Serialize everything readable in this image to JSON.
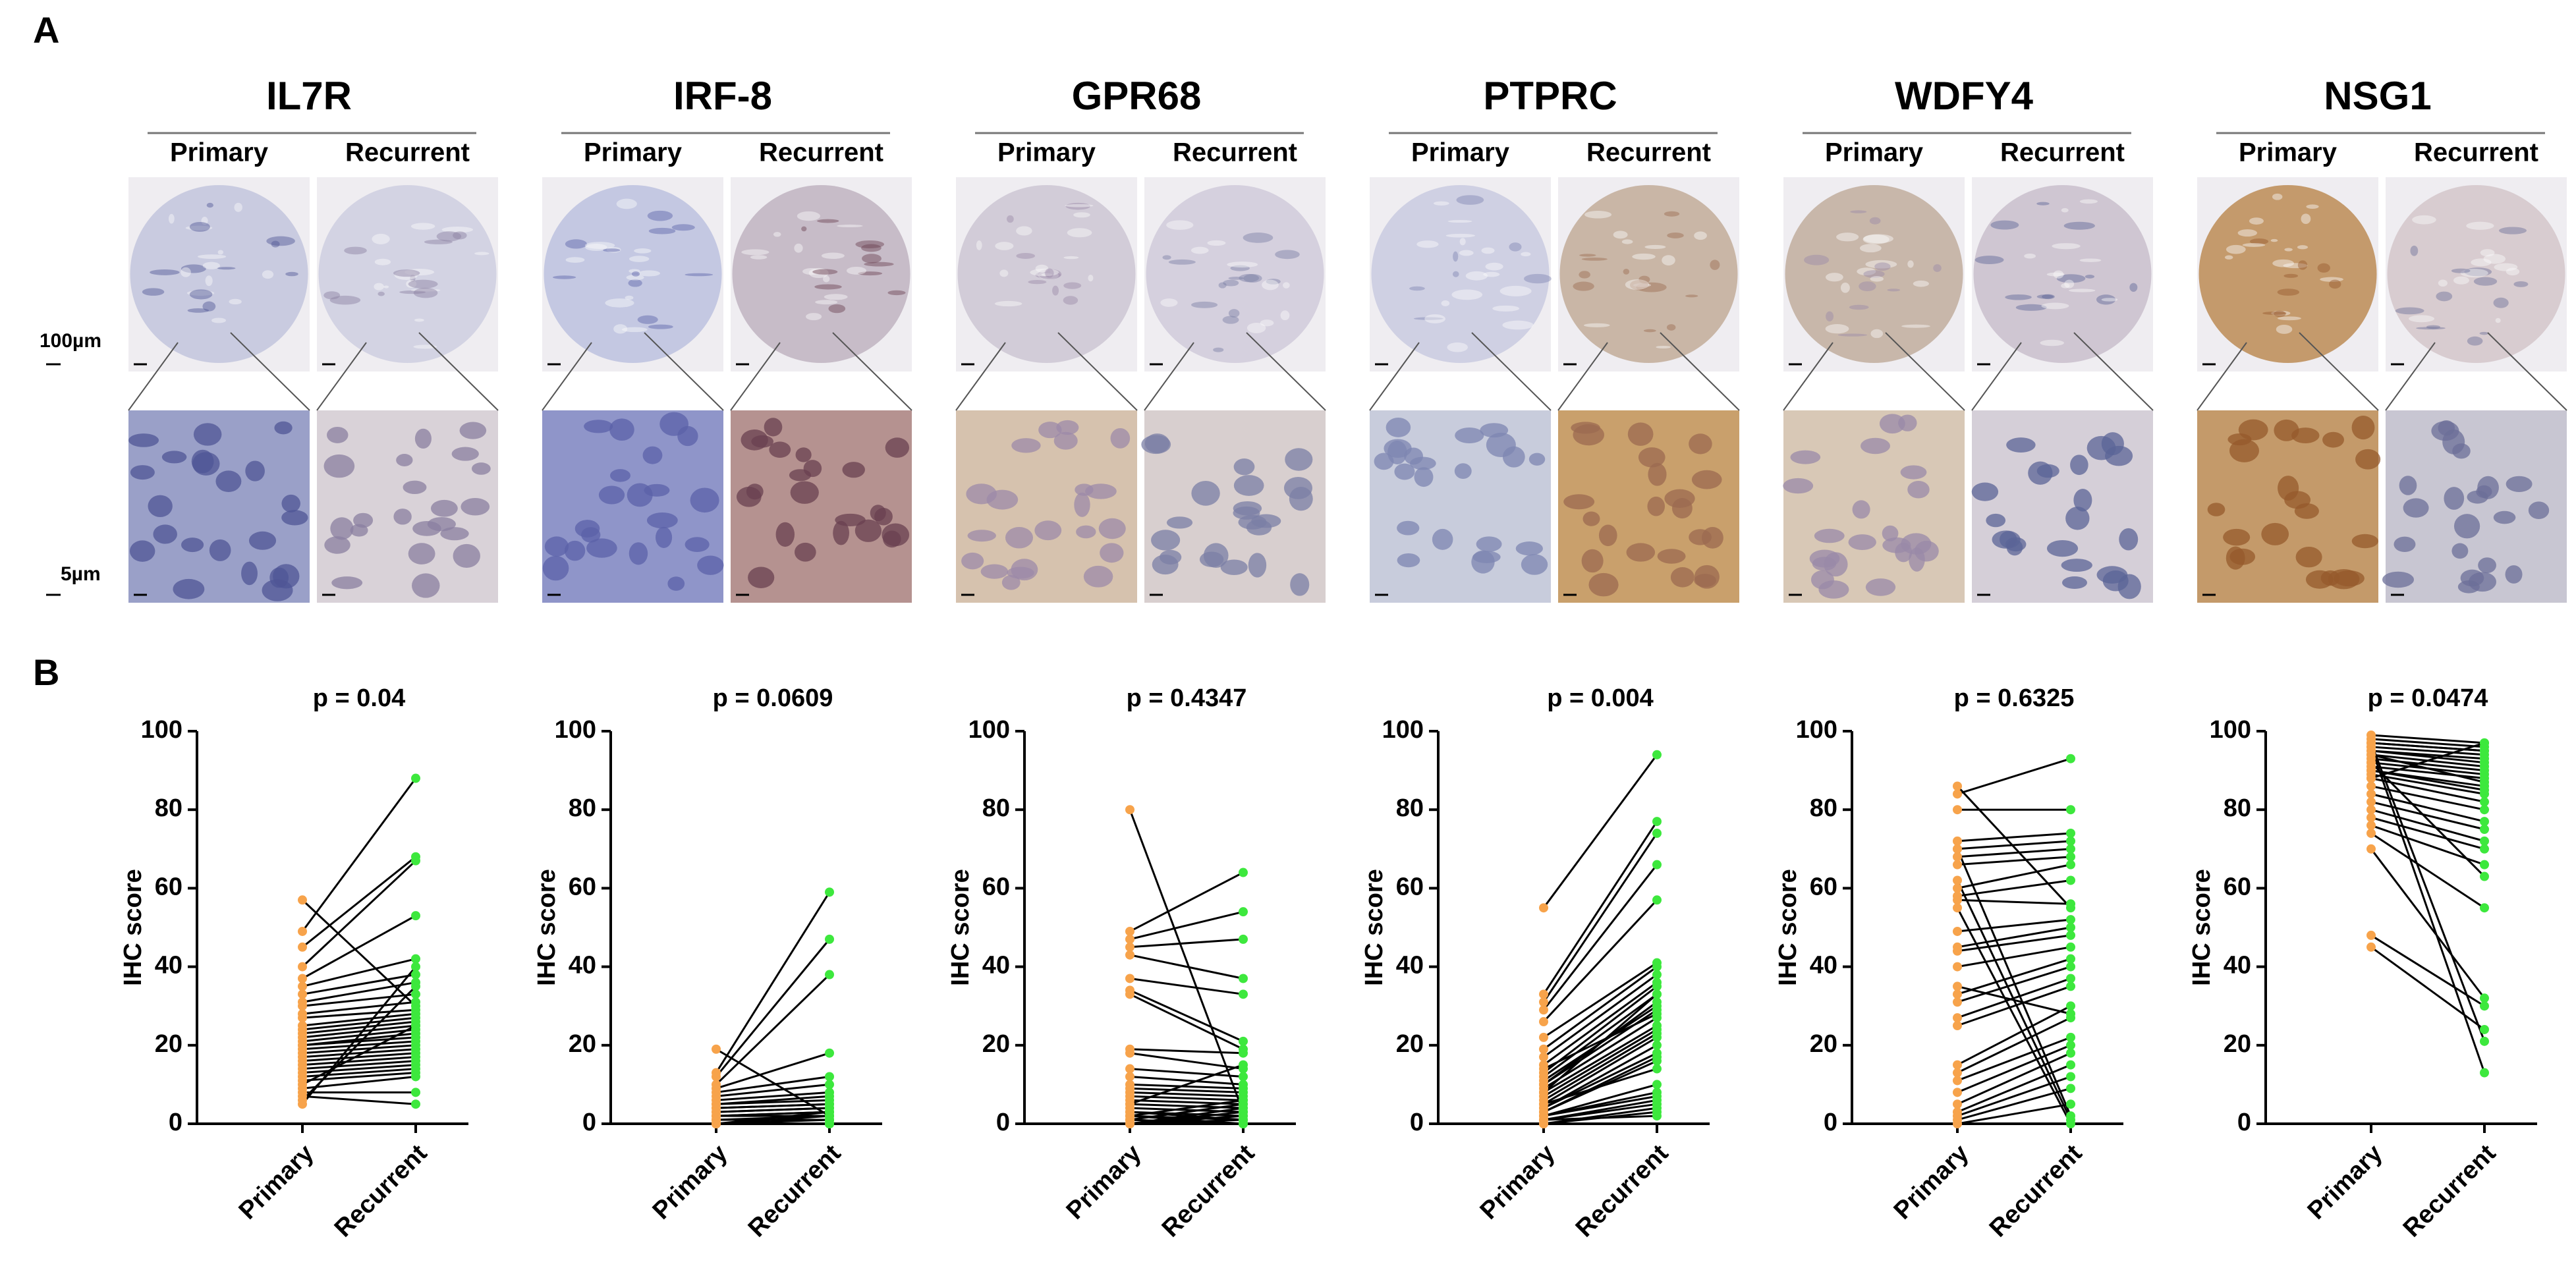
{
  "panel_a": {
    "label": "A",
    "scale_bars": [
      "100µm",
      "5µm"
    ],
    "genes": [
      {
        "name": "IL7R",
        "columns": [
          "Primary",
          "Recurrent"
        ]
      },
      {
        "name": "IRF-8",
        "columns": [
          "Primary",
          "Recurrent"
        ]
      },
      {
        "name": "GPR68",
        "columns": [
          "Primary",
          "Recurrent"
        ]
      },
      {
        "name": "PTPRC",
        "columns": [
          "Primary",
          "Recurrent"
        ]
      },
      {
        "name": "WDFY4",
        "columns": [
          "Primary",
          "Recurrent"
        ]
      },
      {
        "name": "NSG1",
        "columns": [
          "Primary",
          "Recurrent"
        ]
      }
    ]
  },
  "panel_b_label": "B",
  "chart_data": [
    {
      "type": "paired",
      "title": "p = 0.04",
      "y_label": "IHC score",
      "categories": [
        "Primary",
        "Recurrent"
      ],
      "colors": [
        "#f7a34b",
        "#3de83d"
      ],
      "ylim": [
        0,
        100
      ],
      "yticks": [
        0,
        20,
        40,
        60,
        80,
        100
      ],
      "pairs": [
        [
          57,
          30
        ],
        [
          49,
          88
        ],
        [
          45,
          68
        ],
        [
          40,
          67
        ],
        [
          37,
          53
        ],
        [
          35,
          42
        ],
        [
          33,
          38
        ],
        [
          31,
          36
        ],
        [
          30,
          33
        ],
        [
          28,
          31
        ],
        [
          27,
          29
        ],
        [
          25,
          28
        ],
        [
          24,
          27
        ],
        [
          23,
          26
        ],
        [
          22,
          25
        ],
        [
          21,
          24
        ],
        [
          20,
          23
        ],
        [
          20,
          22
        ],
        [
          19,
          21
        ],
        [
          18,
          20
        ],
        [
          17,
          19
        ],
        [
          16,
          18
        ],
        [
          15,
          17
        ],
        [
          14,
          16
        ],
        [
          13,
          15
        ],
        [
          12,
          14
        ],
        [
          11,
          13
        ],
        [
          10,
          25
        ],
        [
          9,
          12
        ],
        [
          8,
          8
        ],
        [
          7,
          5
        ],
        [
          6,
          35
        ],
        [
          5,
          40
        ]
      ]
    },
    {
      "type": "paired",
      "title": "p = 0.0609",
      "y_label": "IHC score",
      "categories": [
        "Primary",
        "Recurrent"
      ],
      "colors": [
        "#f7a34b",
        "#3de83d"
      ],
      "ylim": [
        0,
        100
      ],
      "yticks": [
        0,
        20,
        40,
        60,
        80,
        100
      ],
      "pairs": [
        [
          19,
          2
        ],
        [
          13,
          59
        ],
        [
          12,
          47
        ],
        [
          10,
          38
        ],
        [
          9,
          18
        ],
        [
          8,
          12
        ],
        [
          7,
          10
        ],
        [
          6,
          8
        ],
        [
          5,
          7
        ],
        [
          5,
          6
        ],
        [
          4,
          5
        ],
        [
          4,
          5
        ],
        [
          3,
          4
        ],
        [
          3,
          4
        ],
        [
          2,
          3
        ],
        [
          2,
          3
        ],
        [
          2,
          2
        ],
        [
          1,
          2
        ],
        [
          1,
          1
        ],
        [
          1,
          1
        ],
        [
          1,
          1
        ],
        [
          0,
          0
        ],
        [
          0,
          0
        ],
        [
          0,
          0
        ],
        [
          0,
          0
        ],
        [
          0,
          0
        ],
        [
          0,
          1
        ],
        [
          0,
          2
        ],
        [
          0,
          3
        ],
        [
          0,
          0
        ]
      ]
    },
    {
      "type": "paired",
      "title": "p = 0.4347",
      "y_label": "IHC score",
      "categories": [
        "Primary",
        "Recurrent"
      ],
      "colors": [
        "#f7a34b",
        "#3de83d"
      ],
      "ylim": [
        0,
        100
      ],
      "yticks": [
        0,
        20,
        40,
        60,
        80,
        100
      ],
      "pairs": [
        [
          80,
          3
        ],
        [
          49,
          64
        ],
        [
          47,
          54
        ],
        [
          45,
          47
        ],
        [
          43,
          37
        ],
        [
          37,
          33
        ],
        [
          34,
          21
        ],
        [
          33,
          19
        ],
        [
          19,
          18
        ],
        [
          18,
          14
        ],
        [
          14,
          12
        ],
        [
          12,
          10
        ],
        [
          10,
          9
        ],
        [
          9,
          8
        ],
        [
          8,
          7
        ],
        [
          7,
          6
        ],
        [
          6,
          5
        ],
        [
          5,
          4
        ],
        [
          4,
          3
        ],
        [
          3,
          2
        ],
        [
          3,
          1
        ],
        [
          2,
          1
        ],
        [
          2,
          0
        ],
        [
          1,
          0
        ],
        [
          1,
          0
        ],
        [
          0,
          1
        ],
        [
          0,
          2
        ],
        [
          0,
          3
        ],
        [
          0,
          4
        ],
        [
          1,
          5
        ],
        [
          2,
          6
        ],
        [
          5,
          15
        ]
      ]
    },
    {
      "type": "paired",
      "title": "p = 0.004",
      "y_label": "IHC score",
      "categories": [
        "Primary",
        "Recurrent"
      ],
      "colors": [
        "#f7a34b",
        "#3de83d"
      ],
      "ylim": [
        0,
        100
      ],
      "yticks": [
        0,
        20,
        40,
        60,
        80,
        100
      ],
      "pairs": [
        [
          55,
          94
        ],
        [
          33,
          77
        ],
        [
          31,
          74
        ],
        [
          29,
          66
        ],
        [
          26,
          57
        ],
        [
          22,
          41
        ],
        [
          19,
          40
        ],
        [
          17,
          38
        ],
        [
          15,
          36
        ],
        [
          13,
          35
        ],
        [
          12,
          33
        ],
        [
          11,
          30
        ],
        [
          10,
          29
        ],
        [
          9,
          27
        ],
        [
          8,
          25
        ],
        [
          7,
          24
        ],
        [
          6,
          23
        ],
        [
          5,
          22
        ],
        [
          4,
          20
        ],
        [
          4,
          18
        ],
        [
          3,
          17
        ],
        [
          3,
          16
        ],
        [
          2,
          8
        ],
        [
          2,
          7
        ],
        [
          1,
          6
        ],
        [
          1,
          5
        ],
        [
          0,
          4
        ],
        [
          0,
          3
        ],
        [
          1,
          2
        ],
        [
          2,
          10
        ],
        [
          5,
          14
        ],
        [
          8,
          33
        ],
        [
          10,
          31
        ],
        [
          14,
          28
        ]
      ]
    },
    {
      "type": "paired",
      "title": "p = 0.6325",
      "y_label": "IHC score",
      "categories": [
        "Primary",
        "Recurrent"
      ],
      "colors": [
        "#f7a34b",
        "#3de83d"
      ],
      "ylim": [
        0,
        100
      ],
      "yticks": [
        0,
        20,
        40,
        60,
        80,
        100
      ],
      "pairs": [
        [
          86,
          55
        ],
        [
          84,
          93
        ],
        [
          80,
          80
        ],
        [
          72,
          74
        ],
        [
          70,
          72
        ],
        [
          68,
          70
        ],
        [
          66,
          68
        ],
        [
          60,
          66
        ],
        [
          58,
          62
        ],
        [
          57,
          56
        ],
        [
          49,
          52
        ],
        [
          44,
          48
        ],
        [
          40,
          45
        ],
        [
          33,
          42
        ],
        [
          31,
          40
        ],
        [
          27,
          37
        ],
        [
          25,
          35
        ],
        [
          15,
          30
        ],
        [
          13,
          27
        ],
        [
          11,
          22
        ],
        [
          8,
          20
        ],
        [
          5,
          18
        ],
        [
          3,
          15
        ],
        [
          2,
          12
        ],
        [
          1,
          9
        ],
        [
          0,
          5
        ],
        [
          70,
          2
        ],
        [
          62,
          1
        ],
        [
          55,
          0
        ],
        [
          45,
          50
        ],
        [
          35,
          28
        ]
      ]
    },
    {
      "type": "paired",
      "title": "p = 0.0474",
      "y_label": "IHC score",
      "categories": [
        "Primary",
        "Recurrent"
      ],
      "colors": [
        "#f7a34b",
        "#3de83d"
      ],
      "ylim": [
        0,
        100
      ],
      "yticks": [
        0,
        20,
        40,
        60,
        80,
        100
      ],
      "pairs": [
        [
          99,
          97
        ],
        [
          98,
          96
        ],
        [
          97,
          95
        ],
        [
          97,
          95
        ],
        [
          96,
          94
        ],
        [
          95,
          93
        ],
        [
          95,
          92
        ],
        [
          94,
          91
        ],
        [
          93,
          90
        ],
        [
          92,
          89
        ],
        [
          91,
          88
        ],
        [
          90,
          86
        ],
        [
          89,
          84
        ],
        [
          88,
          82
        ],
        [
          86,
          80
        ],
        [
          84,
          77
        ],
        [
          82,
          75
        ],
        [
          80,
          72
        ],
        [
          78,
          70
        ],
        [
          76,
          66
        ],
        [
          74,
          55
        ],
        [
          70,
          32
        ],
        [
          48,
          30
        ],
        [
          45,
          24
        ],
        [
          97,
          21
        ],
        [
          96,
          13
        ],
        [
          94,
          87
        ],
        [
          92,
          63
        ],
        [
          90,
          85
        ],
        [
          88,
          97
        ]
      ]
    }
  ]
}
